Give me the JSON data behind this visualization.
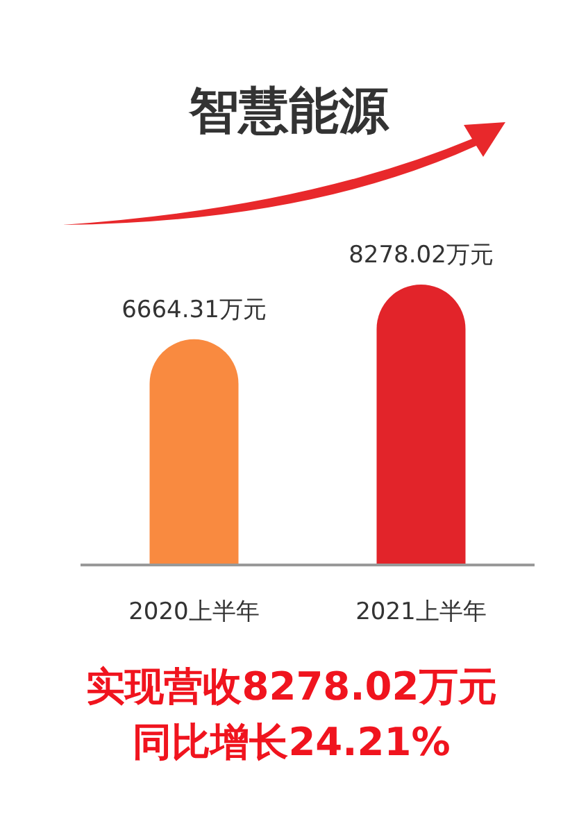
{
  "chart_data": {
    "type": "bar",
    "title": "智慧能源",
    "categories": [
      "2020上半年",
      "2021上半年"
    ],
    "values": [
      6664.31,
      8278.02
    ],
    "value_labels": [
      "6664.31万元",
      "8278.02万元"
    ],
    "colors": [
      "#f98a40",
      "#e2242a"
    ],
    "annotations": [
      "实现营收8278.02万元",
      "同比增长24.21%"
    ]
  }
}
